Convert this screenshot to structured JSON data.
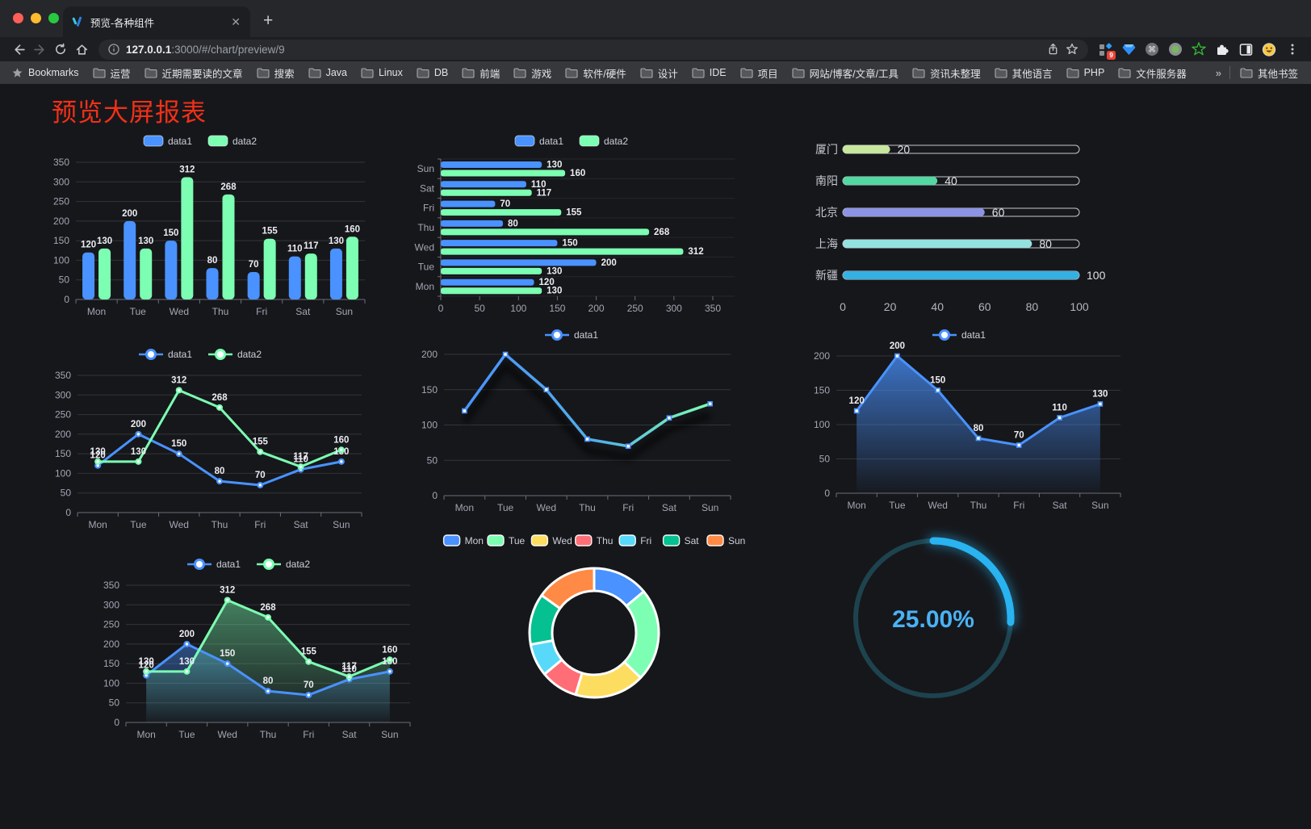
{
  "browser": {
    "tab": {
      "title": "预览-各种组件",
      "new_tab": "+",
      "close": "✕"
    },
    "url": {
      "host": "127.0.0.1",
      "rest": ":3000/#/chart/preview/9"
    },
    "extensions": {
      "badge": "9",
      "command_glyph": "⌘"
    },
    "bookmarks_label": "Bookmarks",
    "bookmarks": [
      "运营",
      "近期需要读的文章",
      "搜索",
      "Java",
      "Linux",
      "DB",
      "前端",
      "游戏",
      "软件/硬件",
      "设计",
      "IDE",
      "项目",
      "网站/博客/文章/工具",
      "资讯未整理",
      "其他语言",
      "PHP",
      "文件服务器"
    ],
    "overflow_chevron": "»",
    "other_bookmarks": "其他书签"
  },
  "page": {
    "title": "预览大屏报表",
    "title_color": "#f23018"
  },
  "palette": {
    "page_bg": "#16171b",
    "axis_text": "#a5a5b2",
    "grid_line": "rgba(255,255,255,0.13)",
    "axis_line": "#6d6d78",
    "value_label": "#ececf2",
    "legend_text": "#cfcfda",
    "series_blue": "#4992ff",
    "series_green": "#7cffb2"
  },
  "chart_data": [
    {
      "type": "bar",
      "title": "",
      "categories": [
        "Mon",
        "Tue",
        "Wed",
        "Thu",
        "Fri",
        "Sat",
        "Sun"
      ],
      "series": [
        {
          "name": "data1",
          "color": "#4992ff",
          "values": [
            120,
            200,
            150,
            80,
            70,
            110,
            130
          ]
        },
        {
          "name": "data2",
          "color": "#7cffb2",
          "values": [
            130,
            130,
            312,
            268,
            155,
            117,
            160
          ]
        }
      ],
      "ylim": [
        0,
        350
      ],
      "ystep": 50,
      "labels": true,
      "legend_position": "top"
    },
    {
      "type": "hbar",
      "title": "",
      "categories": [
        "Mon",
        "Tue",
        "Wed",
        "Thu",
        "Fri",
        "Sat",
        "Sun"
      ],
      "series": [
        {
          "name": "data1",
          "color": "#4992ff",
          "values": [
            120,
            200,
            150,
            80,
            70,
            110,
            130
          ]
        },
        {
          "name": "data2",
          "color": "#7cffb2",
          "values": [
            130,
            130,
            312,
            268,
            155,
            117,
            160
          ]
        }
      ],
      "xlim": [
        0,
        350
      ],
      "xstep": 50,
      "labels": true,
      "legend_position": "top"
    },
    {
      "type": "progress",
      "title": "",
      "rows": [
        {
          "label": "厦门",
          "value": 20,
          "color": "#c6e79c"
        },
        {
          "label": "南阳",
          "value": 40,
          "color": "#52d8a2"
        },
        {
          "label": "北京",
          "value": 60,
          "color": "#8d93e3"
        },
        {
          "label": "上海",
          "value": 80,
          "color": "#93e2e0"
        },
        {
          "label": "新疆",
          "value": 100,
          "color": "#35b0e2"
        }
      ],
      "xlim": [
        0,
        100
      ],
      "xticks": [
        0,
        20,
        40,
        60,
        80,
        100
      ]
    },
    {
      "type": "line",
      "title": "",
      "categories": [
        "Mon",
        "Tue",
        "Wed",
        "Thu",
        "Fri",
        "Sat",
        "Sun"
      ],
      "series": [
        {
          "name": "data1",
          "color": "#4992ff",
          "values": [
            120,
            200,
            150,
            80,
            70,
            110,
            130
          ]
        },
        {
          "name": "data2",
          "color": "#7cffb2",
          "values": [
            130,
            130,
            312,
            268,
            155,
            117,
            160
          ]
        }
      ],
      "ylim": [
        0,
        350
      ],
      "ystep": 50,
      "labels": true,
      "marker": "dot",
      "area": false
    },
    {
      "type": "line-gradient",
      "title": "",
      "categories": [
        "Mon",
        "Tue",
        "Wed",
        "Thu",
        "Fri",
        "Sat",
        "Sun"
      ],
      "series": [
        {
          "name": "data1",
          "color": "#4992ff",
          "color2": "#7cffb2",
          "values": [
            120,
            200,
            150,
            80,
            70,
            110,
            130
          ]
        }
      ],
      "ylim": [
        0,
        200
      ],
      "ystep": 50,
      "labels": false,
      "marker": "square",
      "shadow": true
    },
    {
      "type": "line",
      "title": "",
      "categories": [
        "Mon",
        "Tue",
        "Wed",
        "Thu",
        "Fri",
        "Sat",
        "Sun"
      ],
      "series": [
        {
          "name": "data1",
          "color": "#4992ff",
          "values": [
            120,
            200,
            150,
            80,
            70,
            110,
            130
          ]
        }
      ],
      "ylim": [
        0,
        200
      ],
      "ystep": 50,
      "labels": true,
      "marker": "square",
      "area": true,
      "area_opacity": 0.75
    },
    {
      "type": "line",
      "title": "",
      "categories": [
        "Mon",
        "Tue",
        "Wed",
        "Thu",
        "Fri",
        "Sat",
        "Sun"
      ],
      "series": [
        {
          "name": "data1",
          "color": "#4992ff",
          "values": [
            120,
            200,
            150,
            80,
            70,
            110,
            130
          ]
        },
        {
          "name": "data2",
          "color": "#7cffb2",
          "values": [
            130,
            130,
            312,
            268,
            155,
            117,
            160
          ]
        }
      ],
      "ylim": [
        0,
        350
      ],
      "ystep": 50,
      "labels": true,
      "marker": "dot",
      "area": true,
      "area_opacity": 0.45
    },
    {
      "type": "pie",
      "title": "",
      "inner_radius": 52,
      "outer_radius": 80,
      "items": [
        {
          "name": "Mon",
          "value": 120,
          "color": "#4992ff"
        },
        {
          "name": "Tue",
          "value": 200,
          "color": "#7cffb2"
        },
        {
          "name": "Wed",
          "value": 150,
          "color": "#fddd60"
        },
        {
          "name": "Thu",
          "value": 80,
          "color": "#ff6e76"
        },
        {
          "name": "Fri",
          "value": 70,
          "color": "#58d9f9"
        },
        {
          "name": "Sat",
          "value": 110,
          "color": "#05c091"
        },
        {
          "name": "Sun",
          "value": 130,
          "color": "#ff8a45"
        }
      ]
    },
    {
      "type": "gauge",
      "title": "",
      "value": 25,
      "label": "25.00%",
      "color": "#29b3f1",
      "track_color": "#1d434e",
      "text_color": "#4ab2f4"
    }
  ]
}
